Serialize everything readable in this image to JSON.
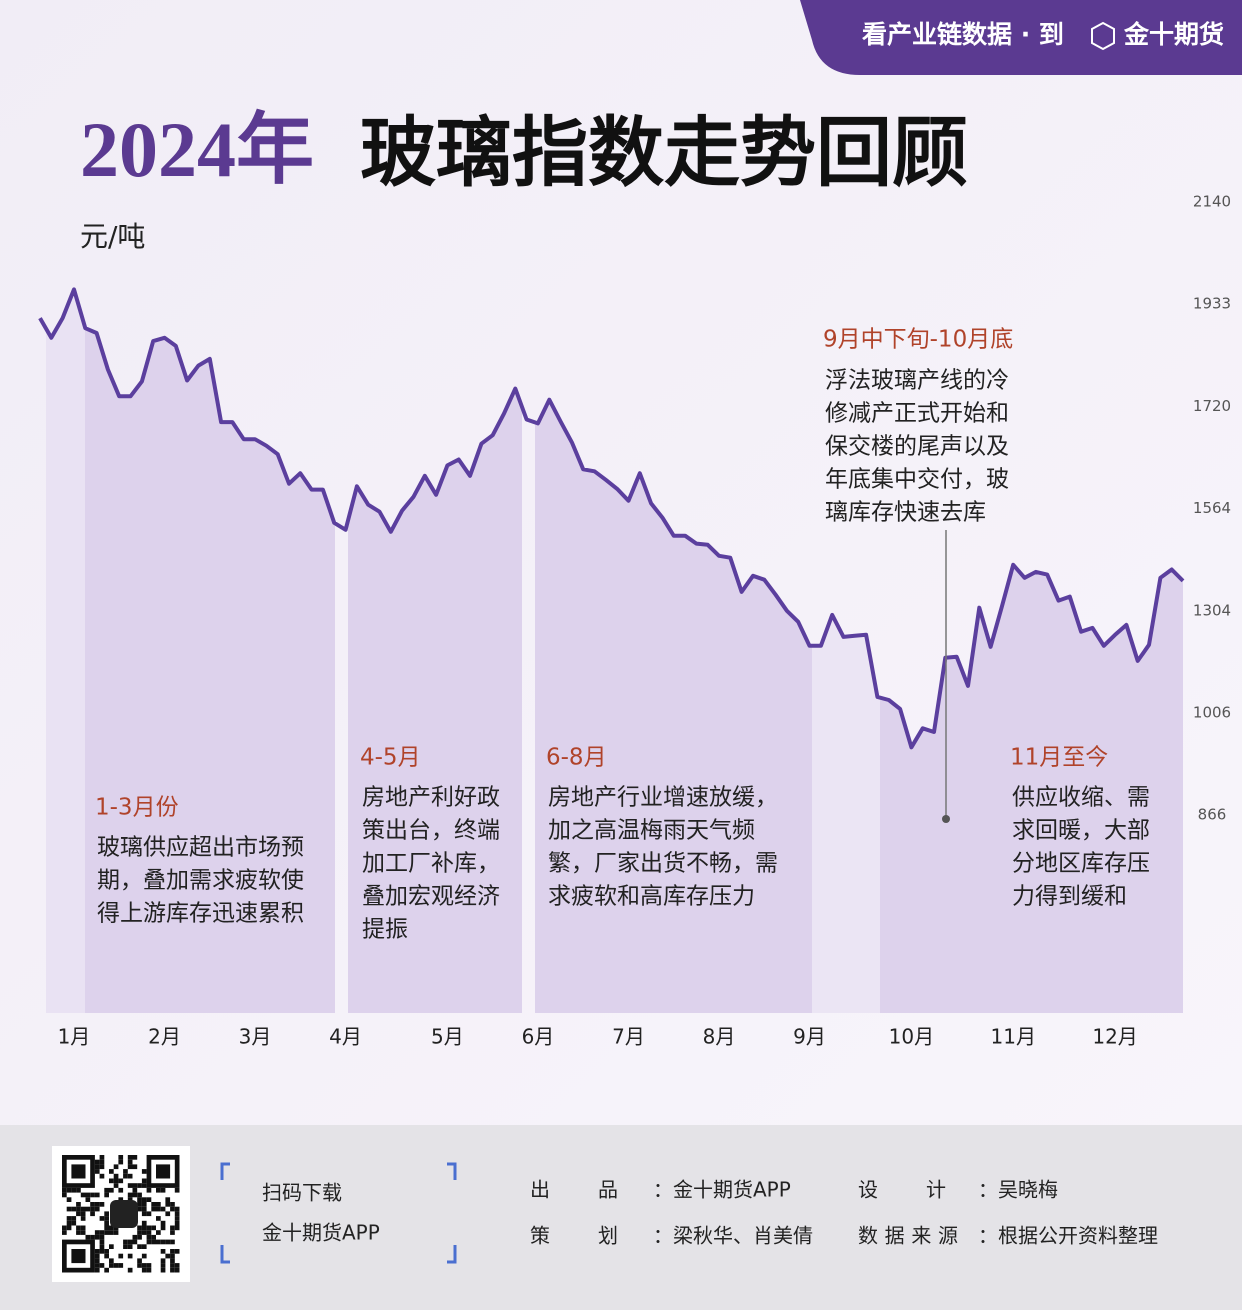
{
  "banner": [
    "看产业链数据 · 到",
    "金十期货"
  ],
  "chart_data": {
    "type": "line",
    "title_parts": [
      "2024年",
      "玻璃指数走势回顾"
    ],
    "y_label": "元/吨",
    "categories": [
      null,
      null,
      null,
      "1月",
      null,
      null,
      null,
      null,
      null,
      null,
      null,
      "2月",
      null,
      null,
      null,
      null,
      null,
      null,
      null,
      "3月",
      null,
      null,
      null,
      null,
      null,
      null,
      null,
      "4月",
      null,
      null,
      null,
      null,
      null,
      null,
      null,
      null,
      "5月",
      null,
      null,
      null,
      null,
      null,
      null,
      null,
      "6月",
      null,
      null,
      null,
      null,
      null,
      null,
      null,
      "7月",
      null,
      null,
      null,
      null,
      null,
      null,
      null,
      "8月",
      null,
      null,
      null,
      null,
      null,
      null,
      null,
      "9月",
      null,
      null,
      null,
      null,
      null,
      null,
      null,
      null,
      "10月",
      null,
      null,
      null,
      null,
      null,
      null,
      null,
      null,
      "11月",
      null,
      null,
      null,
      null,
      null,
      null,
      null,
      null,
      "12月",
      null,
      null,
      null,
      null,
      null,
      null
    ],
    "series": [
      {
        "name": "玻璃指数",
        "color": "#5b3f9e",
        "values": [
          1904,
          1863,
          1904,
          1963,
          1883,
          1873,
          1797,
          1741,
          1741,
          1772,
          1856,
          1863,
          1846,
          1774,
          1805,
          1819,
          1696,
          1696,
          1670,
          1670,
          1660,
          1647,
          1602,
          1618,
          1593,
          1593,
          1528,
          1510,
          1598,
          1570,
          1556,
          1505,
          1559,
          1582,
          1614,
          1585,
          1630,
          1639,
          1614,
          1663,
          1676,
          1709,
          1757,
          1700,
          1694,
          1734,
          1697,
          1665,
          1624,
          1621,
          1608,
          1594,
          1576,
          1618,
          1572,
          1541,
          1495,
          1495,
          1475,
          1472,
          1444,
          1439,
          1352,
          1393,
          1383,
          1345,
          1304,
          1272,
          1202,
          1202,
          1292,
          1228,
          1231,
          1234,
          1053,
          1044,
          1018,
          959,
          985,
          980,
          1167,
          1170,
          1085,
          1312,
          1199,
          1315,
          1421,
          1388,
          1403,
          1396,
          1330,
          1340,
          1243,
          1254,
          1202,
          1234,
          1263,
          1158,
          1205,
          1388,
          1409,
          1380
        ]
      }
    ],
    "ylim": [
      866,
      2140
    ],
    "yticks": [
      2140,
      1933,
      1720,
      1564,
      1304,
      1006,
      866
    ],
    "annotations": [
      {
        "title": "1-3月份",
        "lines": [
          "玻璃供应超出市场预",
          "期，叠加需求疲软使",
          "得上游库存迅速累积"
        ]
      },
      {
        "title": "4-5月",
        "lines": [
          "房地产利好政",
          "策出台，终端",
          "加工厂补库，",
          "叠加宏观经济",
          "提振"
        ]
      },
      {
        "title": "6-8月",
        "lines": [
          "房地产行业增速放缓，",
          "加之高温梅雨天气频",
          "繁，厂家出货不畅，需",
          "求疲软和高库存压力"
        ]
      },
      {
        "title": "9月中下旬-10月底",
        "lines": [
          "浮法玻璃产线的冷",
          "修减产正式开始和",
          "保交楼的尾声以及",
          "年底集中交付，玻",
          "璃库存快速去库"
        ]
      },
      {
        "title": "11月至今",
        "lines": [
          "供应收缩、需",
          "求回暖，大部",
          "分地区库存压",
          "力得到缓和"
        ]
      }
    ]
  },
  "footer": {
    "download": [
      "扫码下载",
      "金十期货APP"
    ],
    "credits": [
      {
        "label": "出品",
        "value": "：金十期货APP"
      },
      {
        "label": "设计",
        "value": "：吴晓梅"
      },
      {
        "label": "策划",
        "value": "：梁秋华、肖美倩"
      },
      {
        "label": "数据来源",
        "value": "：根据公开资料整理"
      }
    ]
  }
}
